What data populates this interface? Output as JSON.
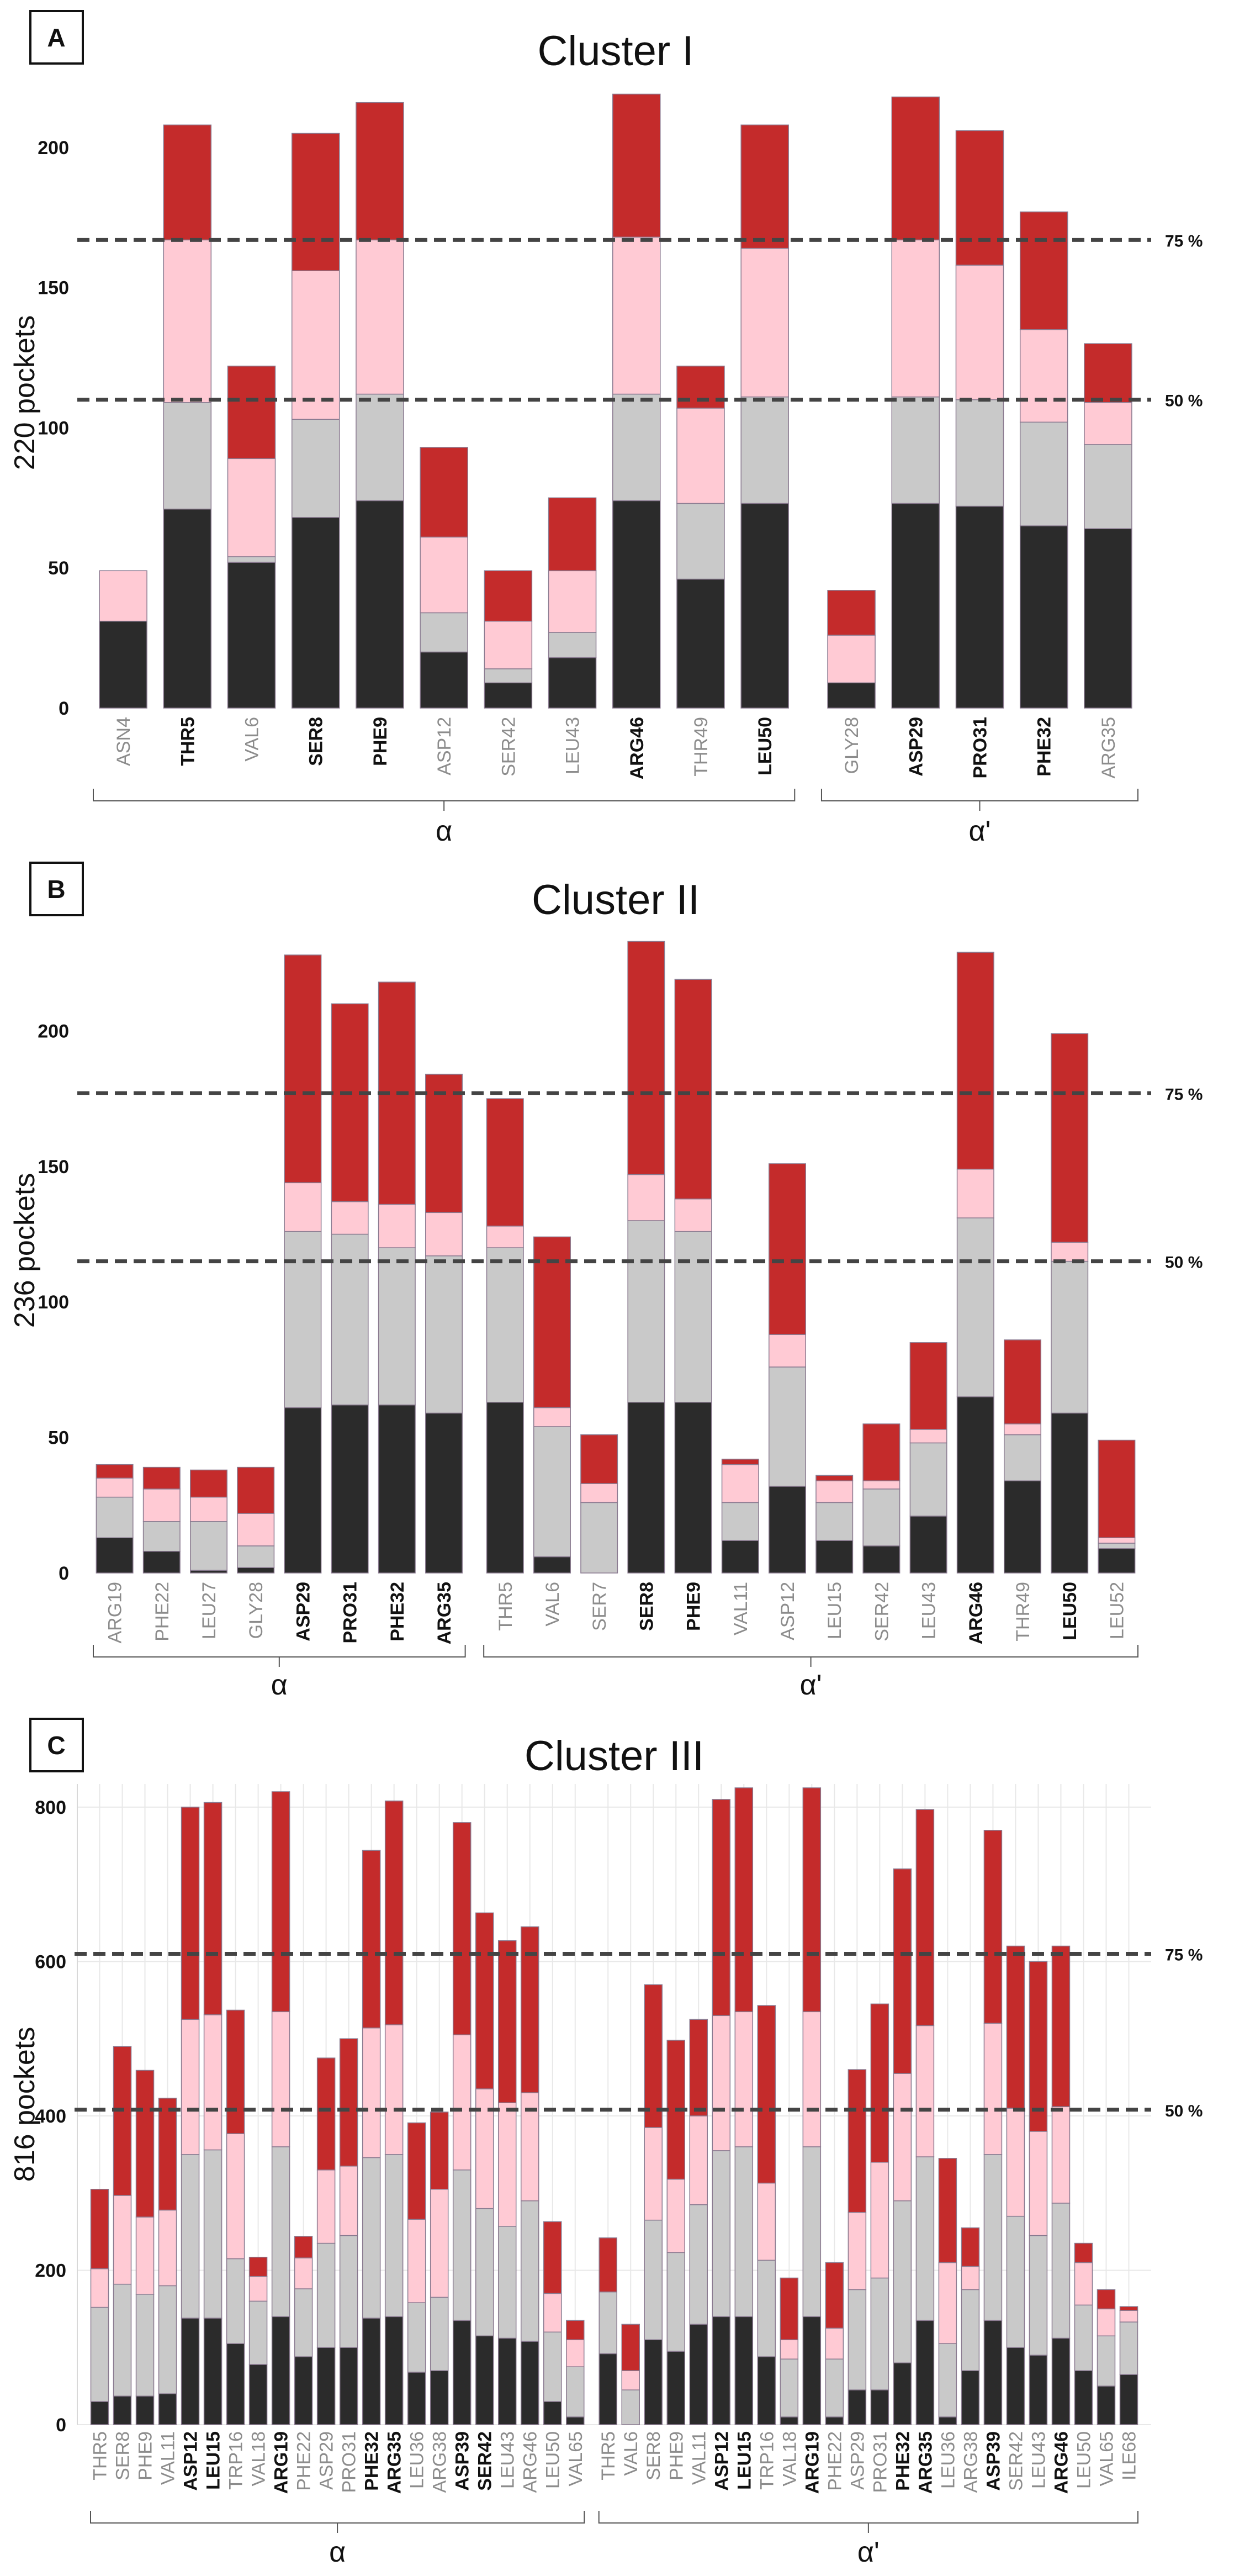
{
  "colors": {
    "q1": "#2b2b2b",
    "q2": "#c9c9c9",
    "q3": "#ffcad4",
    "q4": "#c42b2b",
    "outline": "#8a7a90",
    "refline": "#444444",
    "grid": "#e8e8e8",
    "bold_label": "#111111",
    "gray_label": "#8c8c8c"
  },
  "chart_data": [
    {
      "panel": "A",
      "type": "bar",
      "stacked": true,
      "title": "Cluster I",
      "ylabel": "220 pockets",
      "ylim": [
        0,
        225
      ],
      "yticks": [
        0,
        50,
        100,
        150,
        200
      ],
      "grid": false,
      "reference_lines": [
        {
          "label": "75 %",
          "value": 167
        },
        {
          "label": "50 %",
          "value": 110
        }
      ],
      "categories": [
        "ASN4",
        "THR5",
        "VAL6",
        "SER8",
        "PHE9",
        "ASP12",
        "SER42",
        "LEU43",
        "ARG46",
        "THR49",
        "LEU50",
        "GLY28",
        "ASP29",
        "PRO31",
        "PHE32",
        "ARG35"
      ],
      "bold": [
        false,
        true,
        false,
        true,
        true,
        false,
        false,
        false,
        true,
        false,
        true,
        false,
        true,
        true,
        true,
        false
      ],
      "gaps_after": [
        10
      ],
      "series": [
        {
          "color": "q1",
          "values": [
            31,
            71,
            52,
            68,
            74,
            20,
            9,
            18,
            74,
            46,
            73,
            9,
            73,
            72,
            65,
            64
          ]
        },
        {
          "color": "q2",
          "values": [
            0,
            38,
            2,
            35,
            38,
            14,
            5,
            9,
            38,
            27,
            38,
            0,
            38,
            38,
            37,
            30
          ]
        },
        {
          "color": "q3",
          "values": [
            18,
            58,
            35,
            53,
            55,
            27,
            17,
            22,
            56,
            34,
            53,
            17,
            56,
            48,
            33,
            15
          ]
        },
        {
          "color": "q4",
          "values": [
            0,
            41,
            33,
            49,
            49,
            32,
            18,
            26,
            51,
            15,
            44,
            16,
            51,
            48,
            42,
            21
          ]
        }
      ],
      "groups": [
        {
          "label": "α",
          "from": 0,
          "to": 10
        },
        {
          "label": "α'",
          "from": 11,
          "to": 15
        }
      ]
    },
    {
      "panel": "B",
      "type": "bar",
      "stacked": true,
      "title": "Cluster II",
      "ylabel": "236 pockets",
      "ylim": [
        0,
        238
      ],
      "yticks": [
        0,
        50,
        100,
        150,
        200
      ],
      "grid": false,
      "reference_lines": [
        {
          "label": "75 %",
          "value": 177
        },
        {
          "label": "50 %",
          "value": 115
        }
      ],
      "categories": [
        "ARG19",
        "PHE22",
        "LEU27",
        "GLY28",
        "ASP29",
        "PRO31",
        "PHE32",
        "ARG35",
        "THR5",
        "VAL6",
        "SER7",
        "SER8",
        "PHE9",
        "VAL11",
        "ASP12",
        "LEU15",
        "SER42",
        "LEU43",
        "ARG46",
        "THR49",
        "LEU50",
        "LEU52"
      ],
      "bold": [
        false,
        false,
        false,
        false,
        true,
        true,
        true,
        true,
        false,
        false,
        false,
        true,
        true,
        false,
        false,
        false,
        false,
        false,
        true,
        false,
        true,
        false
      ],
      "gaps_after": [
        7
      ],
      "series": [
        {
          "color": "q1",
          "values": [
            13,
            8,
            1,
            2,
            61,
            62,
            62,
            59,
            63,
            6,
            0,
            63,
            63,
            12,
            32,
            12,
            10,
            21,
            65,
            34,
            59,
            9
          ]
        },
        {
          "color": "q2",
          "values": [
            15,
            11,
            18,
            8,
            65,
            63,
            58,
            58,
            57,
            48,
            26,
            67,
            63,
            14,
            44,
            14,
            21,
            27,
            66,
            17,
            56,
            2
          ]
        },
        {
          "color": "q3",
          "values": [
            7,
            12,
            9,
            12,
            18,
            12,
            16,
            16,
            8,
            7,
            7,
            17,
            12,
            14,
            12,
            8,
            3,
            5,
            18,
            4,
            7,
            2
          ]
        },
        {
          "color": "q4",
          "values": [
            5,
            8,
            10,
            17,
            84,
            73,
            82,
            51,
            47,
            63,
            18,
            86,
            81,
            2,
            63,
            2,
            21,
            32,
            80,
            31,
            77,
            36
          ]
        }
      ],
      "groups": [
        {
          "label": "α",
          "from": 0,
          "to": 7
        },
        {
          "label": "α'",
          "from": 8,
          "to": 21
        }
      ]
    },
    {
      "panel": "C",
      "type": "bar",
      "stacked": true,
      "title": "Cluster III",
      "ylabel": "816 pockets",
      "ylim": [
        0,
        830
      ],
      "yticks": [
        0,
        200,
        400,
        600,
        800
      ],
      "grid": true,
      "reference_lines": [
        {
          "label": "75 %",
          "value": 610
        },
        {
          "label": "50 %",
          "value": 408
        }
      ],
      "categories": [
        "THR5",
        "SER8",
        "PHE9",
        "VAL11",
        "ASP12",
        "LEU15",
        "TRP16",
        "VAL18",
        "ARG19",
        "PHE22",
        "ASP29",
        "PRO31",
        "PHE32",
        "ARG35",
        "LEU36",
        "ARG38",
        "ASP39",
        "SER42",
        "LEU43",
        "ARG46",
        "LEU50",
        "VAL65",
        "THR5",
        "VAL6",
        "SER8",
        "PHE9",
        "VAL11",
        "ASP12",
        "LEU15",
        "TRP16",
        "VAL18",
        "ARG19",
        "PHE22",
        "ASP29",
        "PRO31",
        "PHE32",
        "ARG35",
        "LEU36",
        "ARG38",
        "ASP39",
        "SER42",
        "LEU43",
        "ARG46",
        "LEU50",
        "VAL65",
        "ILE68"
      ],
      "bold": [
        false,
        false,
        false,
        false,
        true,
        true,
        false,
        false,
        true,
        false,
        false,
        false,
        true,
        true,
        false,
        false,
        true,
        true,
        false,
        false,
        false,
        false,
        false,
        false,
        false,
        false,
        false,
        true,
        true,
        false,
        false,
        true,
        false,
        false,
        false,
        true,
        true,
        false,
        false,
        true,
        false,
        false,
        true,
        false,
        false,
        false
      ],
      "gaps_after": [
        21
      ],
      "series": [
        {
          "color": "q1",
          "values": [
            30,
            37,
            37,
            40,
            138,
            138,
            105,
            78,
            140,
            88,
            100,
            100,
            138,
            140,
            68,
            70,
            135,
            115,
            112,
            108,
            30,
            10,
            92,
            0,
            110,
            95,
            130,
            140,
            140,
            88,
            10,
            140,
            10,
            45,
            45,
            80,
            135,
            10,
            70,
            135,
            100,
            90,
            112,
            70,
            50,
            65
          ]
        },
        {
          "color": "q2",
          "values": [
            122,
            145,
            132,
            140,
            212,
            218,
            110,
            82,
            220,
            88,
            135,
            145,
            208,
            210,
            90,
            95,
            195,
            165,
            145,
            182,
            90,
            65,
            80,
            45,
            155,
            128,
            155,
            215,
            220,
            125,
            75,
            220,
            75,
            130,
            145,
            210,
            212,
            95,
            105,
            215,
            170,
            155,
            175,
            85,
            65,
            68
          ]
        },
        {
          "color": "q3",
          "values": [
            50,
            115,
            100,
            98,
            175,
            175,
            162,
            32,
            175,
            40,
            95,
            90,
            168,
            168,
            108,
            140,
            175,
            155,
            160,
            140,
            50,
            35,
            0,
            25,
            120,
            95,
            115,
            175,
            175,
            100,
            25,
            175,
            40,
            100,
            150,
            165,
            170,
            105,
            30,
            170,
            140,
            135,
            125,
            55,
            35,
            15
          ]
        },
        {
          "color": "q4",
          "values": [
            103,
            193,
            190,
            145,
            275,
            275,
            160,
            25,
            285,
            28,
            145,
            165,
            230,
            290,
            125,
            100,
            275,
            228,
            210,
            215,
            93,
            25,
            70,
            60,
            185,
            180,
            125,
            280,
            290,
            230,
            80,
            290,
            85,
            185,
            205,
            265,
            280,
            135,
            50,
            250,
            210,
            220,
            208,
            25,
            25,
            5
          ]
        }
      ],
      "groups": [
        {
          "label": "α",
          "from": 0,
          "to": 21
        },
        {
          "label": "α'",
          "from": 22,
          "to": 45
        }
      ]
    }
  ],
  "panels": {
    "A": {
      "badge": "A"
    },
    "B": {
      "badge": "B"
    },
    "C": {
      "badge": "C"
    }
  }
}
